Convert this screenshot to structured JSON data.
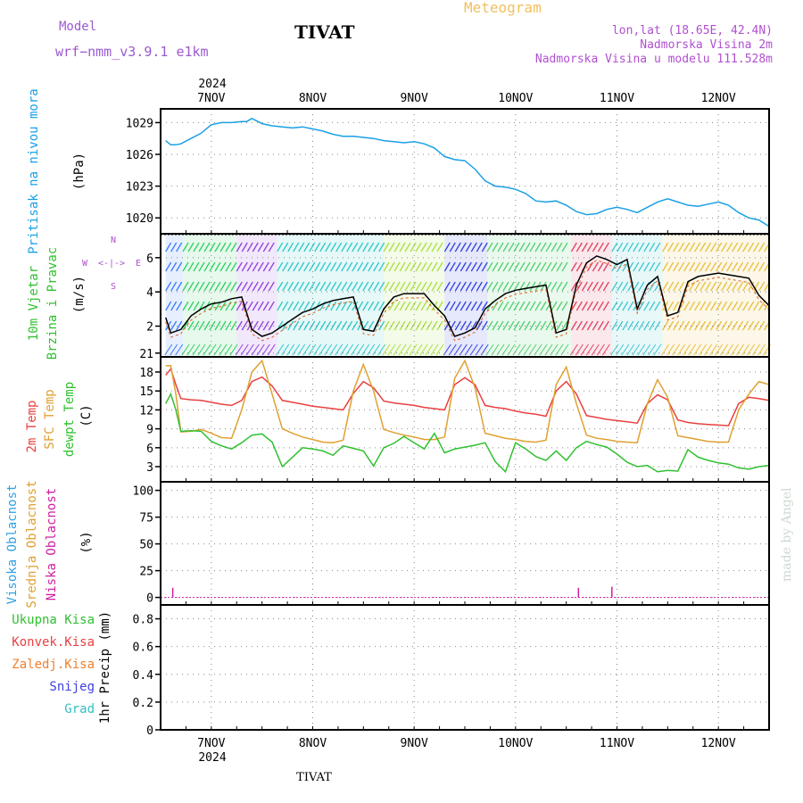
{
  "header": {
    "model_label": "Model",
    "model_name": "wrf−nmm_v3.9.1  e1km",
    "station": "TIVAT",
    "title": "Meteogram",
    "lonlat": "lon,lat (18.65E, 42.4N)",
    "elevation": "Nadmorska Visina 2m",
    "model_elevation": "Nadmorska Visina u modelu 111.528m",
    "colors": {
      "model": "#9b59d0",
      "title": "#f0c060",
      "info": "#b050d0"
    }
  },
  "time_axis": {
    "year": "2024",
    "days": [
      "7NOV",
      "8NOV",
      "9NOV",
      "10NOV",
      "11NOV",
      "12NOV"
    ],
    "footer": "TIVAT"
  },
  "watermark": "made by Angel",
  "chart_data": [
    {
      "type": "line",
      "panel": "pressure",
      "ylabel": [
        "Pritisak na nivou mora",
        "(hPa)"
      ],
      "yticks": [
        1020,
        1023,
        1026,
        1029
      ],
      "ylim": [
        1018.5,
        1030.3
      ],
      "x": [
        6.55,
        6.6,
        6.65,
        6.7,
        6.8,
        6.9,
        7.0,
        7.1,
        7.2,
        7.3,
        7.35,
        7.4,
        7.5,
        7.6,
        7.7,
        7.8,
        7.9,
        8.0,
        8.1,
        8.2,
        8.3,
        8.4,
        8.5,
        8.6,
        8.7,
        8.8,
        8.9,
        9.0,
        9.1,
        9.2,
        9.3,
        9.4,
        9.5,
        9.6,
        9.7,
        9.8,
        9.9,
        10.0,
        10.1,
        10.2,
        10.3,
        10.4,
        10.5,
        10.6,
        10.7,
        10.8,
        10.9,
        11.0,
        11.1,
        11.2,
        11.3,
        11.4,
        11.5,
        11.6,
        11.7,
        11.8,
        11.9,
        12.0,
        12.1,
        12.2,
        12.3,
        12.4,
        12.5
      ],
      "series": [
        {
          "color": "#1aa0e6",
          "values": [
            1027.3,
            1026.9,
            1026.9,
            1027.0,
            1027.5,
            1028.0,
            1028.8,
            1029.0,
            1029.0,
            1029.1,
            1029.1,
            1029.4,
            1028.9,
            1028.7,
            1028.6,
            1028.5,
            1028.6,
            1028.4,
            1028.2,
            1027.9,
            1027.7,
            1027.7,
            1027.6,
            1027.5,
            1027.3,
            1027.2,
            1027.1,
            1027.2,
            1027.0,
            1026.6,
            1025.8,
            1025.5,
            1025.4,
            1024.6,
            1023.5,
            1023.0,
            1022.9,
            1022.7,
            1022.3,
            1021.6,
            1021.5,
            1021.6,
            1021.2,
            1020.6,
            1020.3,
            1020.4,
            1020.8,
            1021.0,
            1020.8,
            1020.5,
            1021.0,
            1021.5,
            1021.8,
            1021.5,
            1021.2,
            1021.1,
            1021.3,
            1021.5,
            1021.2,
            1020.5,
            1020.0,
            1019.8,
            1019.2
          ]
        }
      ]
    },
    {
      "type": "line",
      "panel": "wind",
      "ylabel": [
        "10m Vjetar",
        "Brzina i Pravac",
        "(m/s)"
      ],
      "compass": {
        "n": "N",
        "s": "S",
        "e": "E",
        "w": "W"
      },
      "yticks": [
        2,
        4,
        6
      ],
      "ylim": [
        0.2,
        7.4
      ],
      "x": [
        6.55,
        6.6,
        6.7,
        6.8,
        6.9,
        7.0,
        7.1,
        7.2,
        7.3,
        7.4,
        7.5,
        7.6,
        7.7,
        7.8,
        7.9,
        8.0,
        8.1,
        8.2,
        8.3,
        8.4,
        8.5,
        8.6,
        8.7,
        8.8,
        8.9,
        9.0,
        9.1,
        9.2,
        9.3,
        9.4,
        9.5,
        9.6,
        9.7,
        9.8,
        9.9,
        10.0,
        10.1,
        10.2,
        10.3,
        10.4,
        10.5,
        10.6,
        10.7,
        10.8,
        10.9,
        11.0,
        11.1,
        11.2,
        11.3,
        11.4,
        11.5,
        11.6,
        11.7,
        11.8,
        11.9,
        12.0,
        12.1,
        12.2,
        12.3,
        12.4,
        12.5
      ],
      "series": [
        {
          "color": "#000000",
          "values": [
            2.5,
            1.6,
            1.8,
            2.6,
            3.0,
            3.3,
            3.4,
            3.6,
            3.7,
            1.8,
            1.4,
            1.6,
            2.0,
            2.4,
            2.8,
            3.0,
            3.3,
            3.5,
            3.6,
            3.7,
            1.8,
            1.7,
            3.0,
            3.7,
            3.9,
            3.9,
            3.9,
            3.2,
            2.6,
            1.4,
            1.6,
            1.9,
            3.0,
            3.5,
            3.9,
            4.1,
            4.2,
            4.3,
            4.4,
            1.6,
            1.8,
            4.4,
            5.7,
            6.1,
            5.9,
            5.6,
            5.9,
            3.0,
            4.4,
            4.9,
            2.6,
            2.8,
            4.6,
            4.9,
            5.0,
            5.1,
            5.0,
            4.9,
            4.8,
            3.8,
            3.2
          ]
        }
      ],
      "wind_bands": [
        {
          "from": 6.55,
          "to": 6.72,
          "color": "#3a7bff"
        },
        {
          "from": 6.72,
          "to": 7.25,
          "color": "#30d060"
        },
        {
          "from": 7.25,
          "to": 7.65,
          "color": "#9040e0"
        },
        {
          "from": 7.65,
          "to": 8.7,
          "color": "#30c8c8"
        },
        {
          "from": 8.7,
          "to": 9.3,
          "color": "#a8e040"
        },
        {
          "from": 9.3,
          "to": 9.72,
          "color": "#3040e0"
        },
        {
          "from": 9.72,
          "to": 10.55,
          "color": "#50d070"
        },
        {
          "from": 10.55,
          "to": 10.95,
          "color": "#e04060"
        },
        {
          "from": 10.95,
          "to": 11.45,
          "color": "#40c8d0"
        },
        {
          "from": 11.45,
          "to": 12.5,
          "color": "#e8c040"
        }
      ]
    },
    {
      "type": "line",
      "panel": "temperature",
      "ylabel": [
        "2m Temp",
        "SFC Temp",
        "dewpt Temp",
        "(C)"
      ],
      "yticks": [
        3,
        6,
        9,
        12,
        15,
        18,
        21
      ],
      "ylim": [
        0.6,
        20.4
      ],
      "x": [
        6.55,
        6.6,
        6.65,
        6.7,
        6.8,
        6.9,
        7.0,
        7.1,
        7.2,
        7.3,
        7.4,
        7.5,
        7.6,
        7.7,
        7.8,
        7.9,
        8.0,
        8.1,
        8.2,
        8.3,
        8.4,
        8.5,
        8.6,
        8.7,
        8.8,
        8.9,
        9.0,
        9.1,
        9.2,
        9.3,
        9.4,
        9.5,
        9.6,
        9.7,
        9.8,
        9.9,
        10.0,
        10.1,
        10.2,
        10.3,
        10.4,
        10.5,
        10.6,
        10.7,
        10.8,
        10.9,
        11.0,
        11.1,
        11.2,
        11.3,
        11.4,
        11.5,
        11.6,
        11.7,
        11.8,
        11.9,
        12.0,
        12.1,
        12.2,
        12.3,
        12.4,
        12.5
      ],
      "series": [
        {
          "name": "2m Temp",
          "color": "#e84040",
          "values": [
            17.5,
            18.5,
            16.0,
            13.8,
            13.6,
            13.5,
            13.2,
            12.9,
            12.7,
            13.5,
            16.5,
            17.2,
            15.8,
            13.5,
            13.2,
            12.9,
            12.6,
            12.4,
            12.2,
            12.0,
            14.6,
            16.5,
            15.5,
            13.4,
            13.1,
            12.9,
            12.7,
            12.4,
            12.2,
            12.0,
            16.0,
            17.1,
            16.0,
            12.7,
            12.4,
            12.2,
            11.8,
            11.5,
            11.3,
            11.0,
            15.0,
            16.5,
            14.5,
            11.1,
            10.8,
            10.5,
            10.3,
            10.1,
            9.9,
            13.0,
            14.4,
            13.6,
            10.4,
            10.0,
            9.8,
            9.7,
            9.6,
            9.5,
            13.0,
            14.0,
            13.8,
            13.5
          ]
        },
        {
          "name": "SFC Temp",
          "color": "#e0a030",
          "values": [
            19.0,
            19.0,
            14.5,
            8.5,
            8.6,
            8.9,
            8.3,
            7.6,
            7.5,
            12.0,
            18.0,
            19.8,
            14.5,
            9.0,
            8.3,
            7.7,
            7.3,
            6.9,
            6.8,
            7.2,
            15.0,
            19.2,
            15.0,
            8.9,
            8.4,
            8.0,
            7.7,
            7.3,
            7.3,
            7.7,
            17.0,
            19.8,
            15.5,
            8.3,
            7.9,
            7.5,
            7.3,
            7.0,
            6.9,
            7.2,
            16.0,
            18.8,
            13.0,
            8.0,
            7.5,
            7.3,
            7.0,
            6.9,
            6.8,
            13.0,
            16.8,
            14.0,
            7.9,
            7.6,
            7.3,
            7.0,
            6.9,
            6.9,
            12.0,
            14.5,
            16.5,
            16.0
          ]
        },
        {
          "name": "dewpt Temp",
          "color": "#30c030",
          "values": [
            13.0,
            14.5,
            12.0,
            8.6,
            8.7,
            8.6,
            7.0,
            6.3,
            5.8,
            6.8,
            8.0,
            8.2,
            6.9,
            3.0,
            4.5,
            6.0,
            5.8,
            5.5,
            4.8,
            6.3,
            5.9,
            5.5,
            3.1,
            6.0,
            6.7,
            7.8,
            6.8,
            5.8,
            8.3,
            5.2,
            5.8,
            6.1,
            6.4,
            6.8,
            3.8,
            2.2,
            6.8,
            5.8,
            4.6,
            4.0,
            5.5,
            4.0,
            6.0,
            7.0,
            6.5,
            6.1,
            5.0,
            3.7,
            3.0,
            3.2,
            2.2,
            2.4,
            2.3,
            5.7,
            4.5,
            4.0,
            3.6,
            3.4,
            2.8,
            2.6,
            3.0,
            3.2
          ]
        }
      ]
    },
    {
      "type": "bar",
      "panel": "clouds",
      "ylabel": [
        "Visoka Oblacnost",
        "Srednja Oblacnost",
        "Niska Oblacnost",
        "(%)"
      ],
      "yticks": [
        0,
        25,
        50,
        75,
        100
      ],
      "ylim": [
        -7,
        108
      ],
      "series": [
        {
          "name": "Visoka Oblacnost",
          "color": "#30a0e0",
          "x": [],
          "values": []
        },
        {
          "name": "Srednja Oblacnost",
          "color": "#e0a030",
          "x": [],
          "values": []
        },
        {
          "name": "Niska Oblacnost",
          "color": "#d020a0",
          "x": [
            6.62,
            10.62,
            10.95
          ],
          "values": [
            9,
            9,
            10
          ]
        }
      ]
    },
    {
      "type": "bar",
      "panel": "precip",
      "ylabel": [
        "1hr Precip (mm)"
      ],
      "legend": [
        {
          "label": "Ukupna Kisa",
          "color": "#30c030"
        },
        {
          "label": "Konvek.Kisa",
          "color": "#e84040"
        },
        {
          "label": "Zaledj.Kisa",
          "color": "#f08030"
        },
        {
          "label": "Snijeg",
          "color": "#4040e0"
        },
        {
          "label": "Grad",
          "color": "#30c0c0"
        }
      ],
      "yticks": [
        0,
        0.2,
        0.4,
        0.6,
        0.8
      ],
      "ytick_labels": [
        "0",
        "0.2",
        "0.4",
        "0.6",
        "0.8"
      ],
      "ylim": [
        0,
        0.9
      ],
      "values": []
    }
  ]
}
